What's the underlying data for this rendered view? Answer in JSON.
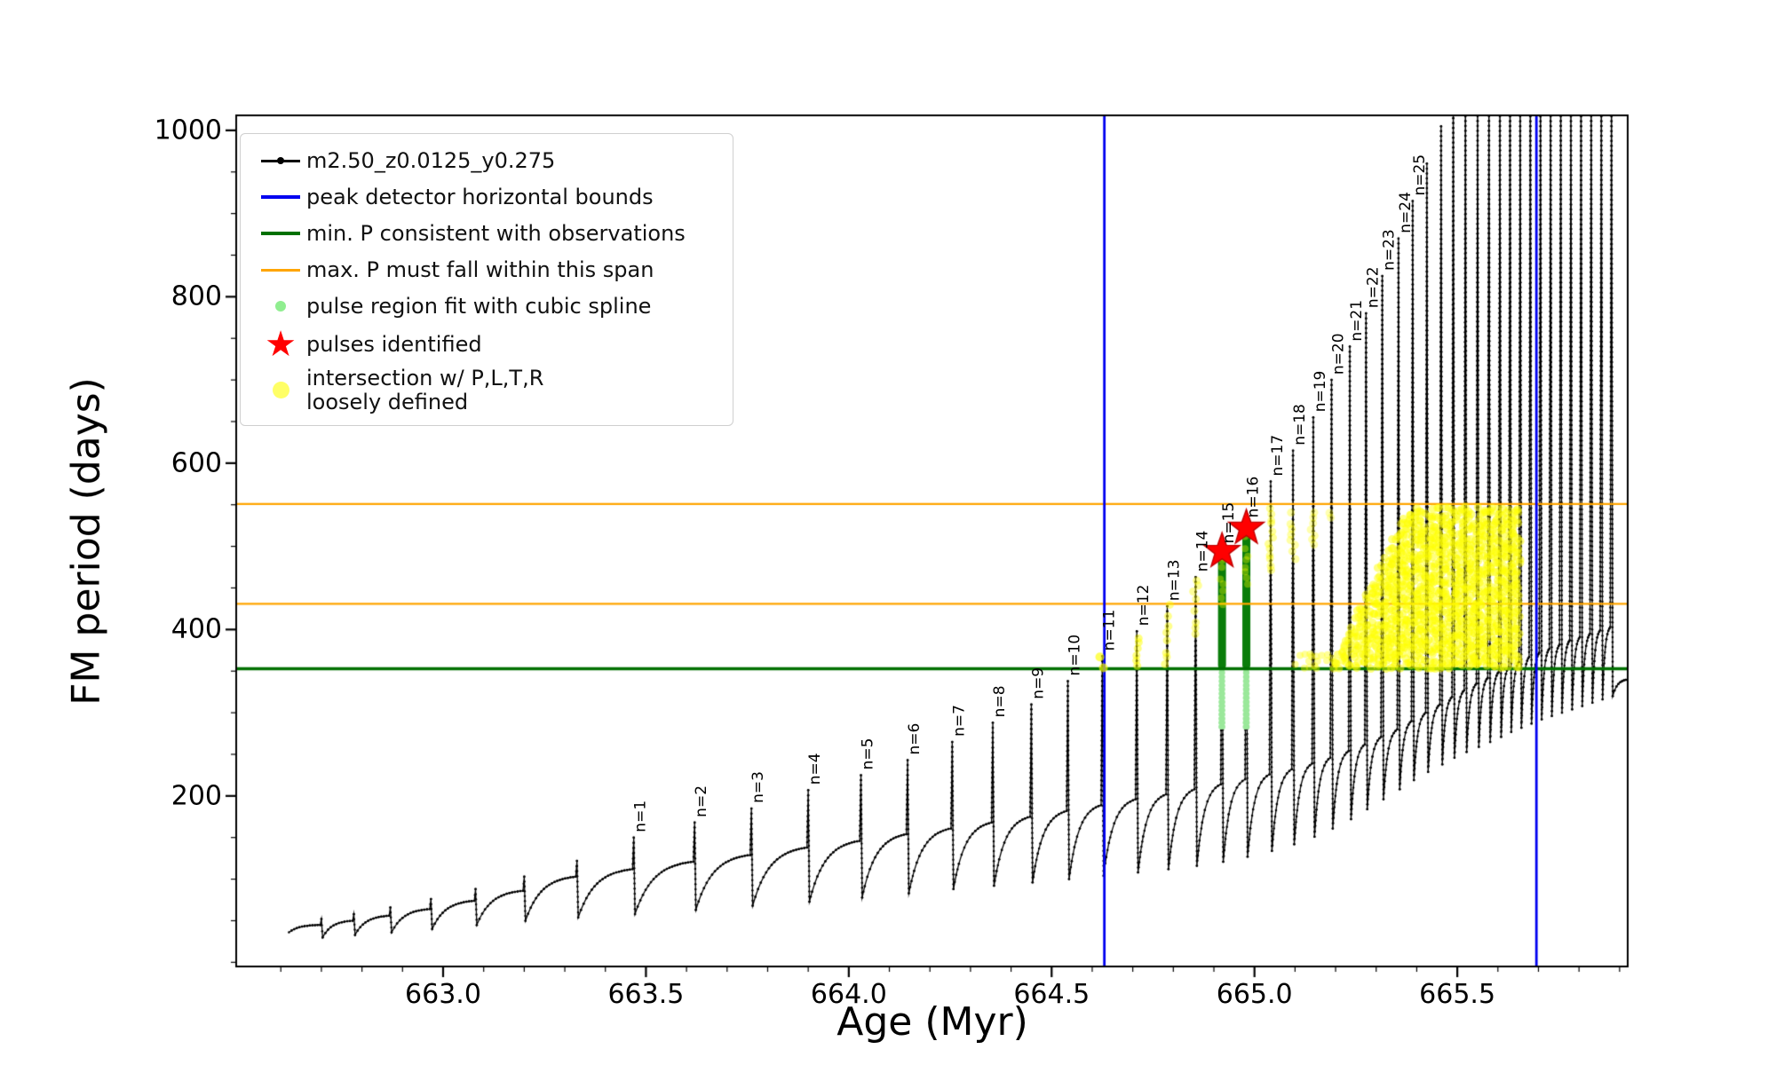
{
  "chart_data": {
    "type": "line",
    "xlabel": "Age (Myr)",
    "ylabel": "FM period (days)",
    "xlim": [
      662.49,
      665.92
    ],
    "ylim": [
      -5,
      1018
    ],
    "xticks": [
      663.0,
      663.5,
      664.0,
      664.5,
      665.0,
      665.5
    ],
    "xtick_labels": [
      "663.0",
      "663.5",
      "664.0",
      "664.5",
      "665.0",
      "665.5"
    ],
    "yticks": [
      200,
      400,
      600,
      800,
      1000
    ],
    "ytick_labels": [
      "200",
      "400",
      "600",
      "800",
      "1000"
    ],
    "minor_xtick_step": 0.1,
    "minor_ytick_step": 50,
    "series_name": "m2.50_z0.0125_y0.275",
    "series_color": "#000000",
    "track_start": {
      "age": 662.62,
      "P": 36
    },
    "track_end": {
      "age": 665.92,
      "P": 340
    },
    "early_pulses": [
      {
        "age": 662.7,
        "peak": 52,
        "base": 45,
        "dip": 30
      },
      {
        "age": 662.78,
        "peak": 58,
        "base": 50,
        "dip": 33
      },
      {
        "age": 662.87,
        "peak": 66,
        "base": 56,
        "dip": 36
      },
      {
        "age": 662.97,
        "peak": 76,
        "base": 64,
        "dip": 40
      },
      {
        "age": 663.08,
        "peak": 88,
        "base": 74,
        "dip": 45
      },
      {
        "age": 663.2,
        "peak": 103,
        "base": 86,
        "dip": 50
      },
      {
        "age": 663.33,
        "peak": 122,
        "base": 103,
        "dip": 54
      }
    ],
    "pulses": [
      {
        "label": "n=1",
        "age": 663.47,
        "peak": 150,
        "base": 112,
        "dip": 58
      },
      {
        "label": "n=2",
        "age": 663.62,
        "peak": 168,
        "base": 121,
        "dip": 63
      },
      {
        "label": "n=3",
        "age": 663.76,
        "peak": 185,
        "base": 129,
        "dip": 68
      },
      {
        "label": "n=4",
        "age": 663.9,
        "peak": 207,
        "base": 138,
        "dip": 73
      },
      {
        "label": "n=5",
        "age": 664.03,
        "peak": 225,
        "base": 146,
        "dip": 78
      },
      {
        "label": "n=6",
        "age": 664.145,
        "peak": 243,
        "base": 154,
        "dip": 83
      },
      {
        "label": "n=7",
        "age": 664.255,
        "peak": 265,
        "base": 161,
        "dip": 88
      },
      {
        "label": "n=8",
        "age": 664.355,
        "peak": 288,
        "base": 168,
        "dip": 92
      },
      {
        "label": "n=9",
        "age": 664.45,
        "peak": 310,
        "base": 175,
        "dip": 96
      },
      {
        "label": "n=10",
        "age": 664.54,
        "peak": 338,
        "base": 182,
        "dip": 100
      },
      {
        "label": "n=11",
        "age": 664.625,
        "peak": 368,
        "base": 189,
        "dip": 104
      },
      {
        "label": "n=12",
        "age": 664.71,
        "peak": 398,
        "base": 196,
        "dip": 108
      },
      {
        "label": "n=13",
        "age": 664.785,
        "peak": 428,
        "base": 202,
        "dip": 112
      },
      {
        "label": "n=14",
        "age": 664.855,
        "peak": 463,
        "base": 208,
        "dip": 116
      },
      {
        "label": "n=15",
        "age": 664.92,
        "peak": 497,
        "base": 214,
        "dip": 121
      },
      {
        "label": "n=16",
        "age": 664.98,
        "peak": 528,
        "base": 220,
        "dip": 127
      },
      {
        "label": "n=17",
        "age": 665.04,
        "peak": 578,
        "base": 226,
        "dip": 134
      },
      {
        "label": "n=18",
        "age": 665.095,
        "peak": 615,
        "base": 232,
        "dip": 142
      },
      {
        "label": "n=19",
        "age": 665.145,
        "peak": 655,
        "base": 239,
        "dip": 151
      },
      {
        "label": "n=20",
        "age": 665.19,
        "peak": 700,
        "base": 246,
        "dip": 161
      },
      {
        "label": "n=21",
        "age": 665.235,
        "peak": 740,
        "base": 254,
        "dip": 172
      },
      {
        "label": "n=22",
        "age": 665.275,
        "peak": 780,
        "base": 262,
        "dip": 184
      },
      {
        "label": "n=23",
        "age": 665.315,
        "peak": 825,
        "base": 271,
        "dip": 196
      },
      {
        "label": "n=24",
        "age": 665.355,
        "peak": 870,
        "base": 280,
        "dip": 208
      },
      {
        "label": "n=25",
        "age": 665.39,
        "peak": 915,
        "base": 290,
        "dip": 219
      }
    ],
    "post_pulses": [
      {
        "age": 665.425,
        "peak": 960,
        "base": 300,
        "dip": 229
      },
      {
        "age": 665.46,
        "peak": 1005,
        "base": 310,
        "dip": 238
      },
      {
        "age": 665.49,
        "peak": 1050,
        "base": 319,
        "dip": 246
      },
      {
        "age": 665.52,
        "peak": 1070,
        "base": 327,
        "dip": 253
      },
      {
        "age": 665.55,
        "peak": 1070,
        "base": 335,
        "dip": 259
      },
      {
        "age": 665.578,
        "peak": 1070,
        "base": 342,
        "dip": 265
      },
      {
        "age": 665.605,
        "peak": 1070,
        "base": 349,
        "dip": 271
      },
      {
        "age": 665.63,
        "peak": 1070,
        "base": 355,
        "dip": 277
      },
      {
        "age": 665.655,
        "peak": 1070,
        "base": 361,
        "dip": 282
      },
      {
        "age": 665.68,
        "peak": 1070,
        "base": 367,
        "dip": 287
      },
      {
        "age": 665.705,
        "peak": 1070,
        "base": 372,
        "dip": 292
      },
      {
        "age": 665.73,
        "peak": 1070,
        "base": 377,
        "dip": 296
      },
      {
        "age": 665.755,
        "peak": 1070,
        "base": 382,
        "dip": 300
      },
      {
        "age": 665.78,
        "peak": 1070,
        "base": 387,
        "dip": 304
      },
      {
        "age": 665.805,
        "peak": 1070,
        "base": 391,
        "dip": 308
      },
      {
        "age": 665.83,
        "peak": 1070,
        "base": 395,
        "dip": 312
      },
      {
        "age": 665.855,
        "peak": 1070,
        "base": 399,
        "dip": 316
      },
      {
        "age": 665.88,
        "peak": 1070,
        "base": 403,
        "dip": 320
      }
    ],
    "bounds": {
      "vertical_blue": {
        "label": "peak detector horizontal bounds",
        "color": "#0000f0",
        "ages": [
          664.63,
          665.695
        ]
      },
      "min_P_green": {
        "label": "min. P consistent with observations",
        "color": "#007000",
        "P": 353
      },
      "orange_span": {
        "label": "max. P must fall within this span",
        "color": "#ffa500",
        "P": [
          431,
          551
        ]
      }
    },
    "spline_fit": {
      "label": "pulse region fit with cubic spline",
      "color": "#9be89b",
      "regions": [
        {
          "age": 664.92,
          "P_min": 283,
          "P_max": 492
        },
        {
          "age": 664.98,
          "P_min": 283,
          "P_max": 520
        }
      ]
    },
    "pulse_bars": {
      "color": "#0a7d0a",
      "segments": [
        {
          "age": 664.92,
          "P_min": 357,
          "P_max": 490
        },
        {
          "age": 664.98,
          "P_min": 357,
          "P_max": 518
        }
      ]
    },
    "stars": {
      "label": "pulses identified",
      "color": "#ff0000",
      "points": [
        {
          "age": 664.92,
          "P": 494
        },
        {
          "age": 664.98,
          "P": 522
        }
      ]
    },
    "intersection": {
      "label": "intersection w/ P,L,T,R loosely defined",
      "color": "#ffff00",
      "dense_region": {
        "age_min": 665.195,
        "age_max": 665.655,
        "P_min": 356,
        "P_cap": 548,
        "top_age": 665.21,
        "top_at": 378,
        "top_slope": 980
      },
      "sparse_strip": {
        "age_min": 665.1,
        "age_max": 665.195,
        "P_min": 356,
        "P_max": 372
      },
      "spike_strands": [
        {
          "age": 664.625,
          "P_min": 354,
          "P_max": 374,
          "alpha": 0.65,
          "r": 5,
          "spread": 5
        },
        {
          "age": 664.71,
          "P_min": 356,
          "P_max": 400,
          "alpha": 0.5,
          "r": 4.5,
          "spread": 3
        },
        {
          "age": 664.785,
          "P_min": 360,
          "P_max": 430,
          "alpha": 0.45,
          "r": 4.5,
          "spread": 3
        },
        {
          "age": 664.855,
          "P_min": 396,
          "P_max": 462,
          "alpha": 0.4,
          "r": 4.5,
          "spread": 3
        },
        {
          "age": 664.92,
          "P_min": 432,
          "P_max": 494,
          "alpha": 0.35,
          "r": 4,
          "spread": 2
        },
        {
          "age": 664.98,
          "P_min": 455,
          "P_max": 524,
          "alpha": 0.35,
          "r": 4,
          "spread": 2
        },
        {
          "age": 665.04,
          "P_min": 470,
          "P_max": 548,
          "alpha": 0.4,
          "r": 4.5,
          "spread": 3
        },
        {
          "age": 665.095,
          "P_min": 486,
          "P_max": 548,
          "alpha": 0.35,
          "r": 4.5,
          "spread": 3
        },
        {
          "age": 665.145,
          "P_min": 500,
          "P_max": 548,
          "alpha": 0.32,
          "r": 4.5,
          "spread": 3
        },
        {
          "age": 665.19,
          "P_min": 514,
          "P_max": 548,
          "alpha": 0.3,
          "r": 4.5,
          "spread": 3
        }
      ]
    }
  },
  "legend": {
    "items": [
      {
        "label": "m2.50_z0.0125_y0.275",
        "marker": "line-dot",
        "color": "#000000"
      },
      {
        "label": "peak detector horizontal bounds",
        "marker": "line",
        "color": "#0000f0"
      },
      {
        "label": "min. P consistent with observations",
        "marker": "line",
        "color": "#007000"
      },
      {
        "label": "max. P must fall within this span",
        "marker": "line-thin",
        "color": "#ffa500"
      },
      {
        "label": "pulse region fit with cubic spline",
        "marker": "dot",
        "color": "#90ee90"
      },
      {
        "label": "pulses identified",
        "marker": "star",
        "color": "#ff0000"
      },
      {
        "label": "intersection w/ P,L,T,R",
        "label2": "loosely defined",
        "marker": "dot-big",
        "color": "#ffff66"
      }
    ]
  },
  "icons": {
    "star_marker": "★"
  }
}
